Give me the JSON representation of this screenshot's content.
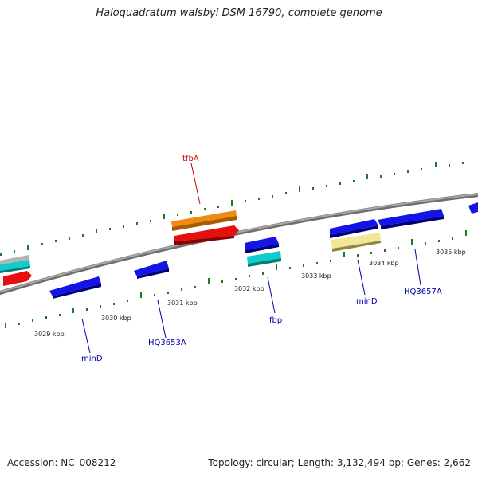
{
  "title": "Haloquadratum walsbyi DSM 16790, complete genome",
  "footer": {
    "accession": "Accession: NC_008212",
    "summary": "Topology: circular; Length: 3,132,494 bp; Genes: 2,662"
  },
  "colors": {
    "backbone": "#8a8a8a",
    "ticks": "#1f7a1f",
    "gene_blue": "#1414e6",
    "gene_red": "#e60f0f",
    "gene_orange": "#f08a10",
    "gene_cyan": "#10cccc",
    "gene_yellow": "#f2e69a",
    "gene_gray": "#b4b4b4",
    "label_blue": "#0000aa",
    "label_red": "#cc0000"
  },
  "kbp_labels": [
    "3029 kbp",
    "3030 kbp",
    "3031 kbp",
    "3032 kbp",
    "3033 kbp",
    "3034 kbp",
    "3035 kbp"
  ],
  "gene_labels": {
    "tfbA": "tfbA",
    "minD_left": "minD",
    "hq3653a": "HQ3653A",
    "fbp": "fbp",
    "minD_right": "minD",
    "hq3657a": "HQ3657A"
  }
}
